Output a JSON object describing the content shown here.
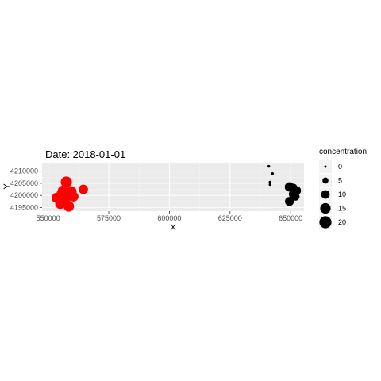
{
  "chart_data": {
    "type": "scatter",
    "title": "Date: 2018-01-01",
    "xlabel": "X",
    "ylabel": "Y",
    "xlim": [
      547500,
      655500
    ],
    "ylim": [
      4193500,
      4213500
    ],
    "x_ticks": [
      550000,
      575000,
      600000,
      625000,
      650000
    ],
    "x_tick_labels": [
      "550000",
      "575000",
      "600000",
      "625000",
      "650000"
    ],
    "y_ticks": [
      4195000,
      4200000,
      4205000,
      4210000
    ],
    "y_tick_labels": [
      "4195000",
      "4200000",
      "4205000",
      "4210000"
    ],
    "grid": true,
    "legend": {
      "title": "concentration",
      "placement": "right",
      "entries": [
        {
          "label": "0",
          "value": 0
        },
        {
          "label": "5",
          "value": 5
        },
        {
          "label": "10",
          "value": 10
        },
        {
          "label": "15",
          "value": 15
        },
        {
          "label": "20",
          "value": 20
        }
      ]
    },
    "size_range": [
      0,
      22
    ],
    "series": [
      {
        "color": "#ff0000",
        "points": [
          {
            "x": 553500,
            "y": 4199000,
            "concentration": 14
          },
          {
            "x": 555000,
            "y": 4196500,
            "concentration": 14
          },
          {
            "x": 555500,
            "y": 4200500,
            "concentration": 14
          },
          {
            "x": 556000,
            "y": 4202000,
            "concentration": 13
          },
          {
            "x": 557500,
            "y": 4205500,
            "concentration": 17
          },
          {
            "x": 557000,
            "y": 4198000,
            "concentration": 15
          },
          {
            "x": 558000,
            "y": 4200000,
            "concentration": 16
          },
          {
            "x": 558500,
            "y": 4195500,
            "concentration": 15
          },
          {
            "x": 559500,
            "y": 4201500,
            "concentration": 16
          },
          {
            "x": 560500,
            "y": 4199500,
            "concentration": 13
          },
          {
            "x": 564500,
            "y": 4202500,
            "concentration": 12
          }
        ]
      },
      {
        "color": "#000000",
        "points": [
          {
            "x": 641000,
            "y": 4212000,
            "concentration": 1
          },
          {
            "x": 642500,
            "y": 4209000,
            "concentration": 1
          },
          {
            "x": 641500,
            "y": 4205500,
            "concentration": 1
          },
          {
            "x": 641500,
            "y": 4204500,
            "concentration": 1
          },
          {
            "x": 649500,
            "y": 4203500,
            "concentration": 12
          },
          {
            "x": 651000,
            "y": 4203000,
            "concentration": 11
          },
          {
            "x": 652500,
            "y": 4202000,
            "concentration": 10
          },
          {
            "x": 651000,
            "y": 4200500,
            "concentration": 10
          },
          {
            "x": 652000,
            "y": 4199500,
            "concentration": 9
          },
          {
            "x": 649500,
            "y": 4197500,
            "concentration": 11
          }
        ]
      }
    ]
  }
}
